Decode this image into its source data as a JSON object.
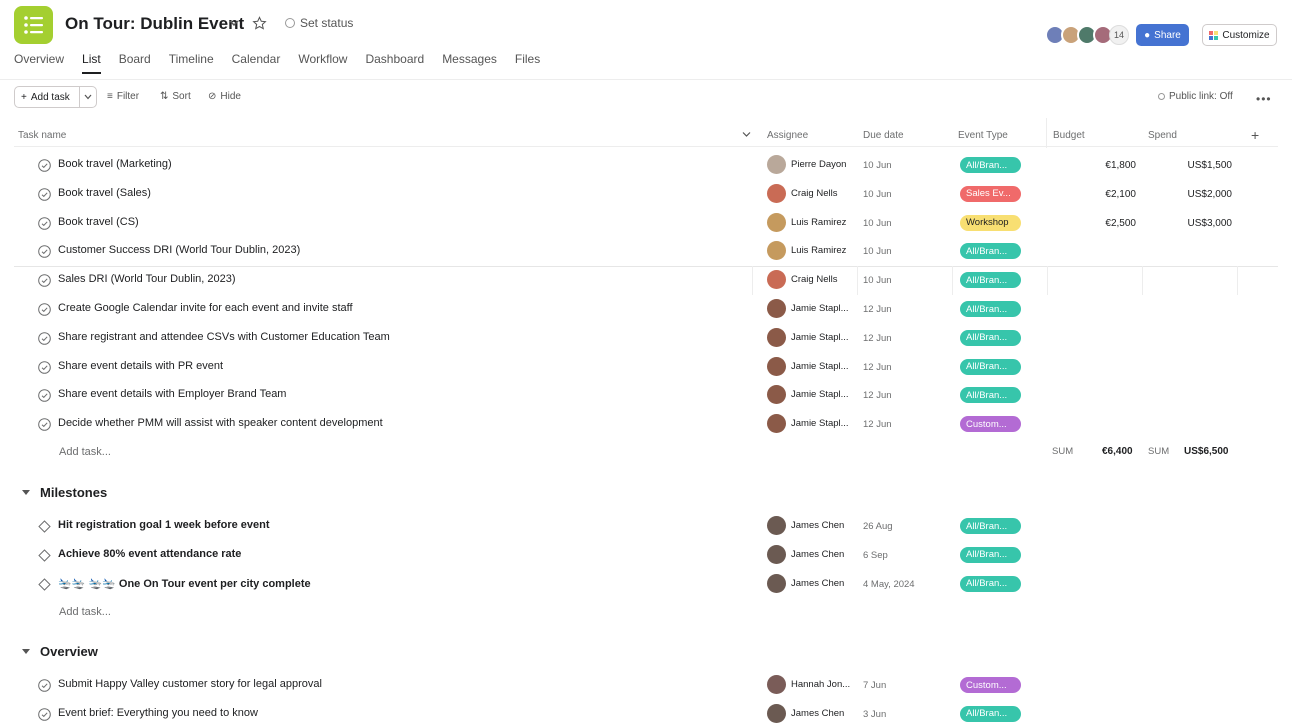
{
  "header": {
    "title": "On Tour: Dublin Event",
    "set_status": "Set status",
    "tabs": [
      "Overview",
      "List",
      "Board",
      "Timeline",
      "Calendar",
      "Workflow",
      "Dashboard",
      "Messages",
      "Files"
    ],
    "active_tab": "List",
    "member_count": "14",
    "share_label": "Share",
    "customize_label": "Customize"
  },
  "toolbar": {
    "add_task": "Add task",
    "filter": "Filter",
    "sort": "Sort",
    "hide": "Hide",
    "public_link": "Public link: Off"
  },
  "columns": {
    "task_name": "Task name",
    "assignee": "Assignee",
    "due_date": "Due date",
    "event_type": "Event Type",
    "budget": "Budget",
    "spend": "Spend"
  },
  "colors": {
    "teal": "#37c5ab",
    "orange": "#f06a6a",
    "yellow": "#f8df72",
    "purple": "#b36bd4",
    "accent": "#4573d2"
  },
  "tasks": [
    {
      "name": "Book travel (Marketing)",
      "assignee": "Pierre Dayon",
      "due": "10 Jun",
      "type": "All/Bran...",
      "color": "teal",
      "budget": "€1,800",
      "spend": "US$1,500"
    },
    {
      "name": "Book travel (Sales)",
      "assignee": "Craig Nells",
      "due": "10 Jun",
      "type": "Sales Ev...",
      "color": "orange",
      "budget": "€2,100",
      "spend": "US$2,000"
    },
    {
      "name": "Book travel (CS)",
      "assignee": "Luis Ramirez",
      "due": "10 Jun",
      "type": "Workshop",
      "color": "yellow",
      "budget": "€2,500",
      "spend": "US$3,000"
    },
    {
      "name": "Customer Success DRI (World Tour Dublin, 2023)",
      "assignee": "Luis Ramirez",
      "due": "10 Jun",
      "type": "All/Bran...",
      "color": "teal",
      "budget": "",
      "spend": ""
    },
    {
      "name": "Sales DRI (World Tour Dublin, 2023)",
      "assignee": "Craig Nells",
      "due": "10 Jun",
      "type": "All/Bran...",
      "color": "teal",
      "budget": "",
      "spend": ""
    },
    {
      "name": "Create Google Calendar invite for each event and invite staff",
      "assignee": "Jamie Stapl...",
      "due": "12 Jun",
      "type": "All/Bran...",
      "color": "teal",
      "budget": "",
      "spend": ""
    },
    {
      "name": "Share registrant and attendee CSVs with Customer Education Team",
      "assignee": "Jamie Stapl...",
      "due": "12 Jun",
      "type": "All/Bran...",
      "color": "teal",
      "budget": "",
      "spend": ""
    },
    {
      "name": "Share event details with PR event",
      "assignee": "Jamie Stapl...",
      "due": "12 Jun",
      "type": "All/Bran...",
      "color": "teal",
      "budget": "",
      "spend": ""
    },
    {
      "name": "Share event details with Employer Brand Team",
      "assignee": "Jamie Stapl...",
      "due": "12 Jun",
      "type": "All/Bran...",
      "color": "teal",
      "budget": "",
      "spend": ""
    },
    {
      "name": "Decide whether PMM will assist with speaker content development",
      "assignee": "Jamie Stapl...",
      "due": "12 Jun",
      "type": "Custom...",
      "color": "purple",
      "budget": "",
      "spend": ""
    }
  ],
  "add_task_label": "Add task...",
  "sum": {
    "label": "SUM",
    "budget": "€6,400",
    "spend": "US$6,500"
  },
  "milestones": {
    "title": "Milestones",
    "items": [
      {
        "name": "Hit registration goal 1 week before event",
        "assignee": "James Chen",
        "due": "26 Aug",
        "type": "All/Bran..."
      },
      {
        "name": "Achieve 80% event attendance rate",
        "assignee": "James Chen",
        "due": "6 Sep",
        "type": "All/Bran..."
      },
      {
        "name": "One On Tour event per city complete",
        "prefix": "🛬🛬 🛬🛬",
        "assignee": "James Chen",
        "due": "4 May, 2024",
        "type": "All/Bran..."
      }
    ]
  },
  "overview": {
    "title": "Overview",
    "items": [
      {
        "name": "Submit Happy Valley customer story for legal approval",
        "assignee": "Hannah Jon...",
        "due": "7 Jun",
        "type": "Custom...",
        "color": "purple"
      },
      {
        "name": "Event brief: Everything you need to know",
        "assignee": "James Chen",
        "due": "3 Jun",
        "type": "All/Bran...",
        "color": "teal"
      }
    ]
  }
}
